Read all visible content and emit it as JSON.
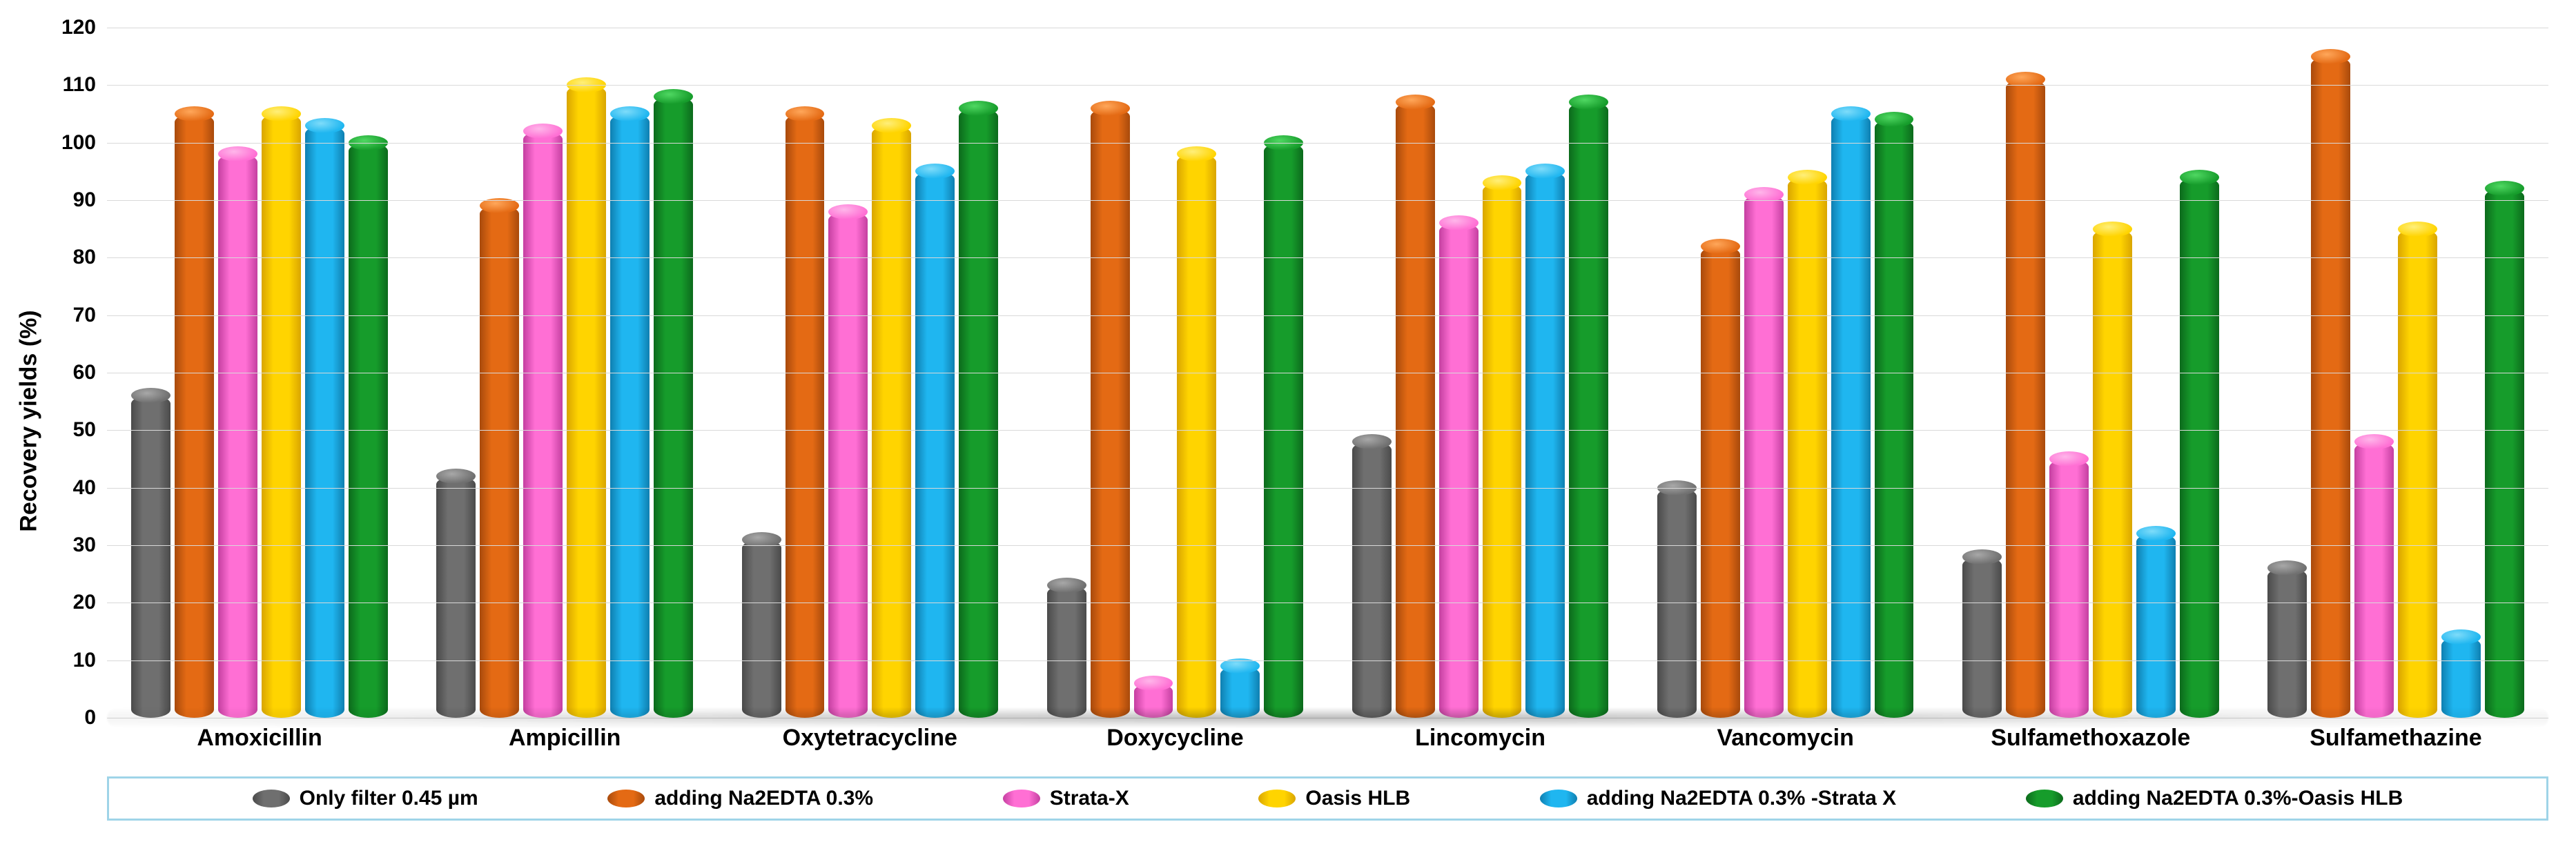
{
  "chart": {
    "type": "bar",
    "background_color": "#ffffff",
    "grid_color": "#d9d9d9",
    "ylabel": "Recovery yields (%)",
    "ylabel_fontsize": 34,
    "ylim": [
      0,
      120
    ],
    "ytick_step": 10,
    "tick_fontsize": 30,
    "xlabel_fontsize": 34,
    "legend_fontsize": 30,
    "legend_border_color": "#9fd4e8",
    "legend_border_width": 3,
    "bar_cap_lighten": 0.25,
    "categories": [
      "Amoxicillin",
      "Ampicillin",
      "Oxytetracycline",
      "Doxycycline",
      "Lincomycin",
      "Vancomycin",
      "Sulfamethoxazole",
      "Sulfamethazine"
    ],
    "series": [
      {
        "name": "Only filter 0.45 µm",
        "color": "#6f6f6f",
        "shade": "#4a4a4a",
        "cap": "#a8a8a8"
      },
      {
        "name": "adding Na2EDTA 0.3%",
        "color": "#e46a14",
        "shade": "#a84a0c",
        "cap": "#ffa75a"
      },
      {
        "name": "Strata-X",
        "color": "#ff6fd4",
        "shade": "#c43fa0",
        "cap": "#ffb6ea"
      },
      {
        "name": "Oasis HLB",
        "color": "#ffd400",
        "shade": "#d9a500",
        "cap": "#ffef7a"
      },
      {
        "name": "adding Na2EDTA 0.3% -Strata X",
        "color": "#1fb6f0",
        "shade": "#0f7fb0",
        "cap": "#7edcfa"
      },
      {
        "name": "adding Na2EDTA 0.3%-Oasis HLB",
        "color": "#169c2b",
        "shade": "#0c6a1c",
        "cap": "#4fd862"
      }
    ],
    "values": [
      [
        56,
        105,
        98,
        105,
        103,
        100
      ],
      [
        42,
        89,
        102,
        110,
        105,
        108
      ],
      [
        31,
        105,
        88,
        103,
        95,
        106
      ],
      [
        23,
        106,
        6,
        98,
        9,
        100
      ],
      [
        48,
        107,
        86,
        93,
        95,
        107
      ],
      [
        40,
        82,
        91,
        94,
        105,
        104
      ],
      [
        28,
        111,
        45,
        85,
        32,
        94
      ],
      [
        26,
        115,
        48,
        85,
        14,
        92
      ]
    ]
  }
}
